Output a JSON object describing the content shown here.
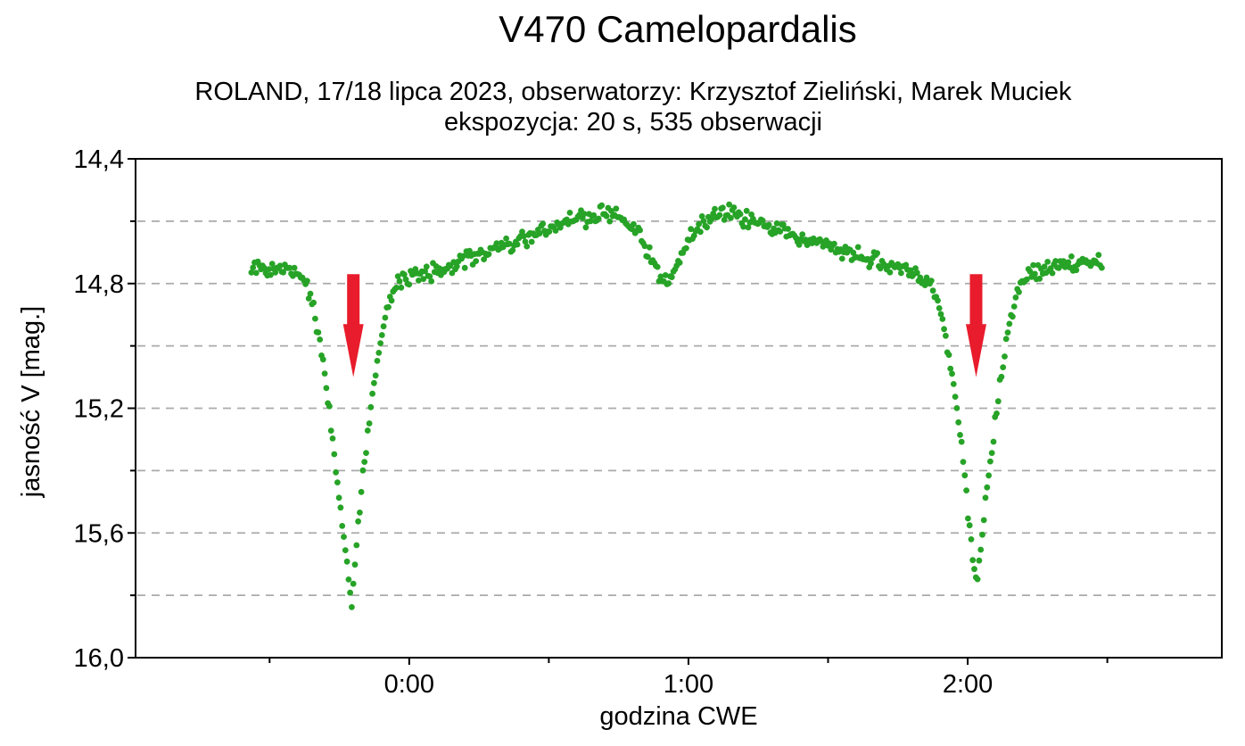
{
  "page": {
    "background": "#FFFFFF"
  },
  "header": {
    "title": "V470 Camelopardalis",
    "subtitle_line1": "ROLAND, 17/18 lipca 2023, obserwatorzy: Krzysztof Zieliński, Marek Muciek",
    "subtitle_line2": "ekspozycja: 20 s, 535 obserwacji"
  },
  "chart_data": {
    "type": "scatter",
    "title": "V470 Camelopardalis",
    "xlabel": "godzina CWE",
    "ylabel": "jasność V  [mag.]",
    "grid": "dashed horizontal",
    "grid_color": "#AAAAAA",
    "point_color": "#27A327",
    "marker": "circle",
    "n_points": 535,
    "observations": 535,
    "x_axis": {
      "unit": "hours CWE",
      "min": -0.98,
      "max": 2.91,
      "major_tick_hours": [
        0,
        1,
        2
      ],
      "major_tick_labels": [
        "0:00",
        "1:00",
        "2:00"
      ],
      "minor_tick_hours": [
        -0.5,
        0.5,
        1.5,
        2.5
      ]
    },
    "y_axis": {
      "inverted_magnitude_scale": true,
      "min": 14.4,
      "max": 16.0,
      "label_ticks": [
        14.4,
        14.8,
        15.2,
        15.6,
        16.0
      ],
      "tick_labels": [
        "14,4",
        "14,8",
        "15,2",
        "15,6",
        "16,0"
      ],
      "minor_ticks": [
        14.6,
        15.0,
        15.4,
        15.8
      ],
      "gridlines": [
        14.6,
        14.8,
        15.0,
        15.2,
        15.4,
        15.6,
        15.8
      ]
    },
    "time_start": -0.565,
    "time_end": 2.48,
    "scatter_sigma_mag": 0.013,
    "out_of_eclipse_max_brightness_mag": 14.57,
    "primary_minimum": {
      "time_hours": -0.205,
      "time_cwe": "-0:12",
      "mag": 15.85
    },
    "secondary_minimum": {
      "time_hours": 2.03,
      "time_cwe": "2:02",
      "mag": 15.78
    },
    "mid_dip": {
      "time_hours": 0.92,
      "mag": 14.8
    },
    "light_curve_profile": [
      [
        -0.565,
        14.76
      ],
      [
        -0.54,
        14.75
      ],
      [
        -0.515,
        14.77
      ],
      [
        -0.49,
        14.755
      ],
      [
        -0.465,
        14.76
      ],
      [
        -0.44,
        14.75
      ],
      [
        -0.415,
        14.765
      ],
      [
        -0.39,
        14.77
      ],
      [
        -0.37,
        14.79
      ],
      [
        -0.356,
        14.83
      ],
      [
        -0.342,
        14.89
      ],
      [
        -0.328,
        14.96
      ],
      [
        -0.314,
        15.03
      ],
      [
        -0.3,
        15.11
      ],
      [
        -0.287,
        15.2
      ],
      [
        -0.274,
        15.3
      ],
      [
        -0.261,
        15.41
      ],
      [
        -0.248,
        15.51
      ],
      [
        -0.236,
        15.6
      ],
      [
        -0.226,
        15.68
      ],
      [
        -0.217,
        15.75
      ],
      [
        -0.21,
        15.8
      ],
      [
        -0.205,
        15.84
      ],
      [
        -0.198,
        15.74
      ],
      [
        -0.19,
        15.65
      ],
      [
        -0.18,
        15.55
      ],
      [
        -0.169,
        15.45
      ],
      [
        -0.158,
        15.36
      ],
      [
        -0.147,
        15.27
      ],
      [
        -0.136,
        15.19
      ],
      [
        -0.124,
        15.11
      ],
      [
        -0.112,
        15.04
      ],
      [
        -0.1,
        14.98
      ],
      [
        -0.088,
        14.92
      ],
      [
        -0.076,
        14.88
      ],
      [
        -0.064,
        14.84
      ],
      [
        -0.05,
        14.81
      ],
      [
        -0.034,
        14.79
      ],
      [
        -0.016,
        14.78
      ],
      [
        0.0,
        14.78
      ],
      [
        0.05,
        14.77
      ],
      [
        0.1,
        14.76
      ],
      [
        0.16,
        14.74
      ],
      [
        0.22,
        14.72
      ],
      [
        0.28,
        14.7
      ],
      [
        0.34,
        14.68
      ],
      [
        0.4,
        14.66
      ],
      [
        0.46,
        14.64
      ],
      [
        0.52,
        14.62
      ],
      [
        0.58,
        14.6
      ],
      [
        0.64,
        14.59
      ],
      [
        0.7,
        14.575
      ],
      [
        0.73,
        14.57
      ],
      [
        0.765,
        14.59
      ],
      [
        0.8,
        14.62
      ],
      [
        0.835,
        14.67
      ],
      [
        0.865,
        14.72
      ],
      [
        0.89,
        14.76
      ],
      [
        0.91,
        14.79
      ],
      [
        0.925,
        14.795
      ],
      [
        0.94,
        14.78
      ],
      [
        0.955,
        14.75
      ],
      [
        0.975,
        14.71
      ],
      [
        1.0,
        14.66
      ],
      [
        1.03,
        14.62
      ],
      [
        1.06,
        14.595
      ],
      [
        1.09,
        14.575
      ],
      [
        1.12,
        14.57
      ],
      [
        1.15,
        14.575
      ],
      [
        1.19,
        14.59
      ],
      [
        1.24,
        14.605
      ],
      [
        1.3,
        14.62
      ],
      [
        1.37,
        14.64
      ],
      [
        1.44,
        14.66
      ],
      [
        1.51,
        14.68
      ],
      [
        1.58,
        14.7
      ],
      [
        1.65,
        14.72
      ],
      [
        1.71,
        14.74
      ],
      [
        1.77,
        14.76
      ],
      [
        1.82,
        14.775
      ],
      [
        1.86,
        14.79
      ],
      [
        1.878,
        14.82
      ],
      [
        1.893,
        14.86
      ],
      [
        1.908,
        14.91
      ],
      [
        1.922,
        14.97
      ],
      [
        1.936,
        15.04
      ],
      [
        1.95,
        15.12
      ],
      [
        1.963,
        15.21
      ],
      [
        1.976,
        15.31
      ],
      [
        1.988,
        15.41
      ],
      [
        1.999,
        15.51
      ],
      [
        2.009,
        15.6
      ],
      [
        2.018,
        15.67
      ],
      [
        2.026,
        15.73
      ],
      [
        2.032,
        15.77
      ],
      [
        2.04,
        15.71
      ],
      [
        2.049,
        15.63
      ],
      [
        2.059,
        15.54
      ],
      [
        2.07,
        15.45
      ],
      [
        2.081,
        15.37
      ],
      [
        2.092,
        15.29
      ],
      [
        2.103,
        15.21
      ],
      [
        2.114,
        15.13
      ],
      [
        2.125,
        15.06
      ],
      [
        2.137,
        15.0
      ],
      [
        2.149,
        14.94
      ],
      [
        2.161,
        14.89
      ],
      [
        2.173,
        14.85
      ],
      [
        2.186,
        14.82
      ],
      [
        2.2,
        14.79
      ],
      [
        2.22,
        14.77
      ],
      [
        2.26,
        14.755
      ],
      [
        2.3,
        14.74
      ],
      [
        2.34,
        14.735
      ],
      [
        2.38,
        14.74
      ],
      [
        2.42,
        14.73
      ],
      [
        2.45,
        14.74
      ],
      [
        2.48,
        14.735
      ]
    ],
    "annotations": {
      "arrow_color": "#E81C2C",
      "arrows": [
        {
          "t": -0.2,
          "top_mag": 14.77,
          "shaft_end_mag": 14.93,
          "tip_mag": 15.1
        },
        {
          "t": 2.03,
          "top_mag": 14.77,
          "shaft_end_mag": 14.93,
          "tip_mag": 15.1
        }
      ]
    }
  }
}
